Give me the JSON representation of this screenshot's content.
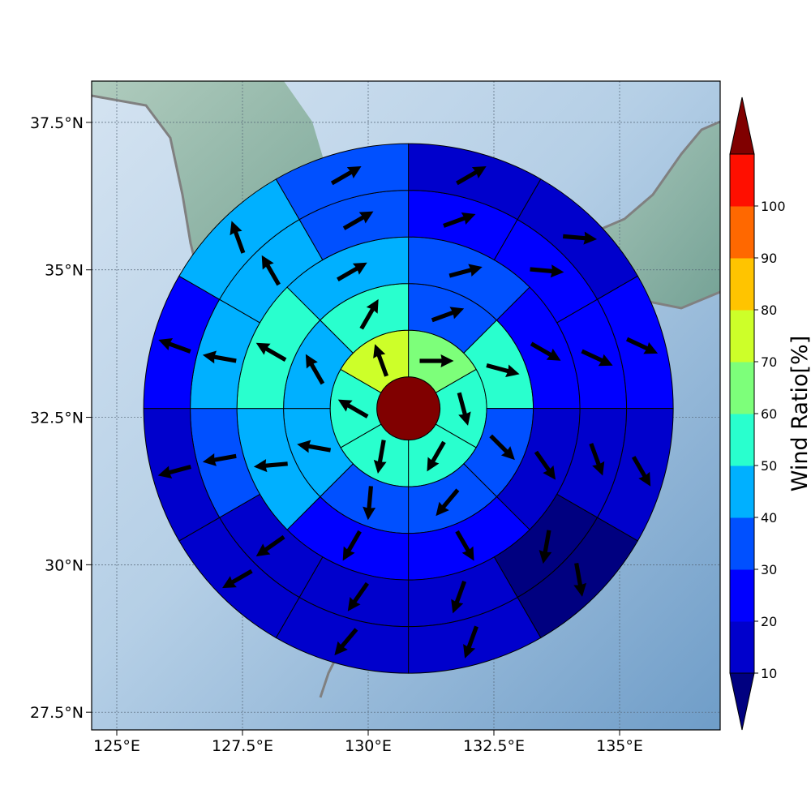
{
  "chart_data": {
    "type": "heatmap",
    "title": "",
    "xlabel": "",
    "ylabel": "",
    "map": {
      "lon_range": [
        124.5,
        137.0
      ],
      "lat_range": [
        27.2,
        38.2
      ],
      "x_tick_labels": [
        {
          "lon": 125.0,
          "label": "125°E"
        },
        {
          "lon": 127.5,
          "label": "127.5°E"
        },
        {
          "lon": 130.0,
          "label": "130°E"
        },
        {
          "lon": 132.5,
          "label": "132.5°E"
        },
        {
          "lon": 135.0,
          "label": "135°E"
        }
      ],
      "y_tick_labels": [
        {
          "lat": 37.5,
          "label": "37.5°N"
        },
        {
          "lat": 35.0,
          "label": "35°N"
        },
        {
          "lat": 32.5,
          "label": "32.5°N"
        },
        {
          "lat": 30.0,
          "label": "30°N"
        },
        {
          "lat": 27.5,
          "label": "27.5°N"
        }
      ],
      "grid": true
    },
    "polar_grid": {
      "center": {
        "lon": 130.8,
        "lat": 32.65
      },
      "rings": 6,
      "sectors_per_ring": [
        1,
        6,
        8,
        8,
        12,
        12
      ],
      "center_value": 100,
      "ring_values": [
        [
          100
        ],
        [
          65,
          50,
          50,
          50,
          55,
          70
        ],
        [
          35,
          55,
          35,
          30,
          30,
          45,
          45,
          55
        ],
        [
          35,
          20,
          15,
          20,
          25,
          45,
          55,
          45
        ],
        [
          20,
          20,
          25,
          15,
          5,
          15,
          15,
          15,
          35,
          45,
          45,
          35
        ],
        [
          15,
          15,
          25,
          15,
          5,
          10,
          10,
          10,
          15,
          25,
          45,
          35
        ]
      ],
      "arrow_angles_deg": [
        [
          0
        ],
        [
          90,
          165,
          210,
          190,
          300,
          340
        ],
        [
          70,
          105,
          135,
          220,
          185,
          280,
          330,
          30
        ],
        [
          75,
          120,
          145,
          150,
          210,
          265,
          300,
          60
        ],
        [
          70,
          95,
          115,
          160,
          190,
          200,
          215,
          235,
          260,
          280,
          330,
          60
        ],
        [
          60,
          95,
          115,
          150,
          170,
          200,
          220,
          240,
          255,
          290,
          340,
          60
        ]
      ]
    },
    "colorbar": {
      "label": "Wind Ratio[%]",
      "ticks": [
        "10",
        "20",
        "30",
        "40",
        "50",
        "60",
        "70",
        "80",
        "90",
        "100"
      ],
      "bins": [
        10,
        20,
        30,
        40,
        50,
        60,
        70,
        80,
        90,
        100
      ],
      "colors": [
        "#0000cc",
        "#0000ff",
        "#0050ff",
        "#00b0ff",
        "#29ffce",
        "#7dff7a",
        "#cdff29",
        "#ffc400",
        "#ff6800",
        "#ff0f00"
      ],
      "under_color": "#000080",
      "over_color": "#800000",
      "extend": "both"
    },
    "colors": {
      "ocean_light": "#cfe0f0",
      "ocean_dark": "#7aa6cc",
      "land": "#8fb8a8",
      "coastline": "#808080",
      "arrow": "#000000",
      "cell_edge": "#000000"
    }
  }
}
